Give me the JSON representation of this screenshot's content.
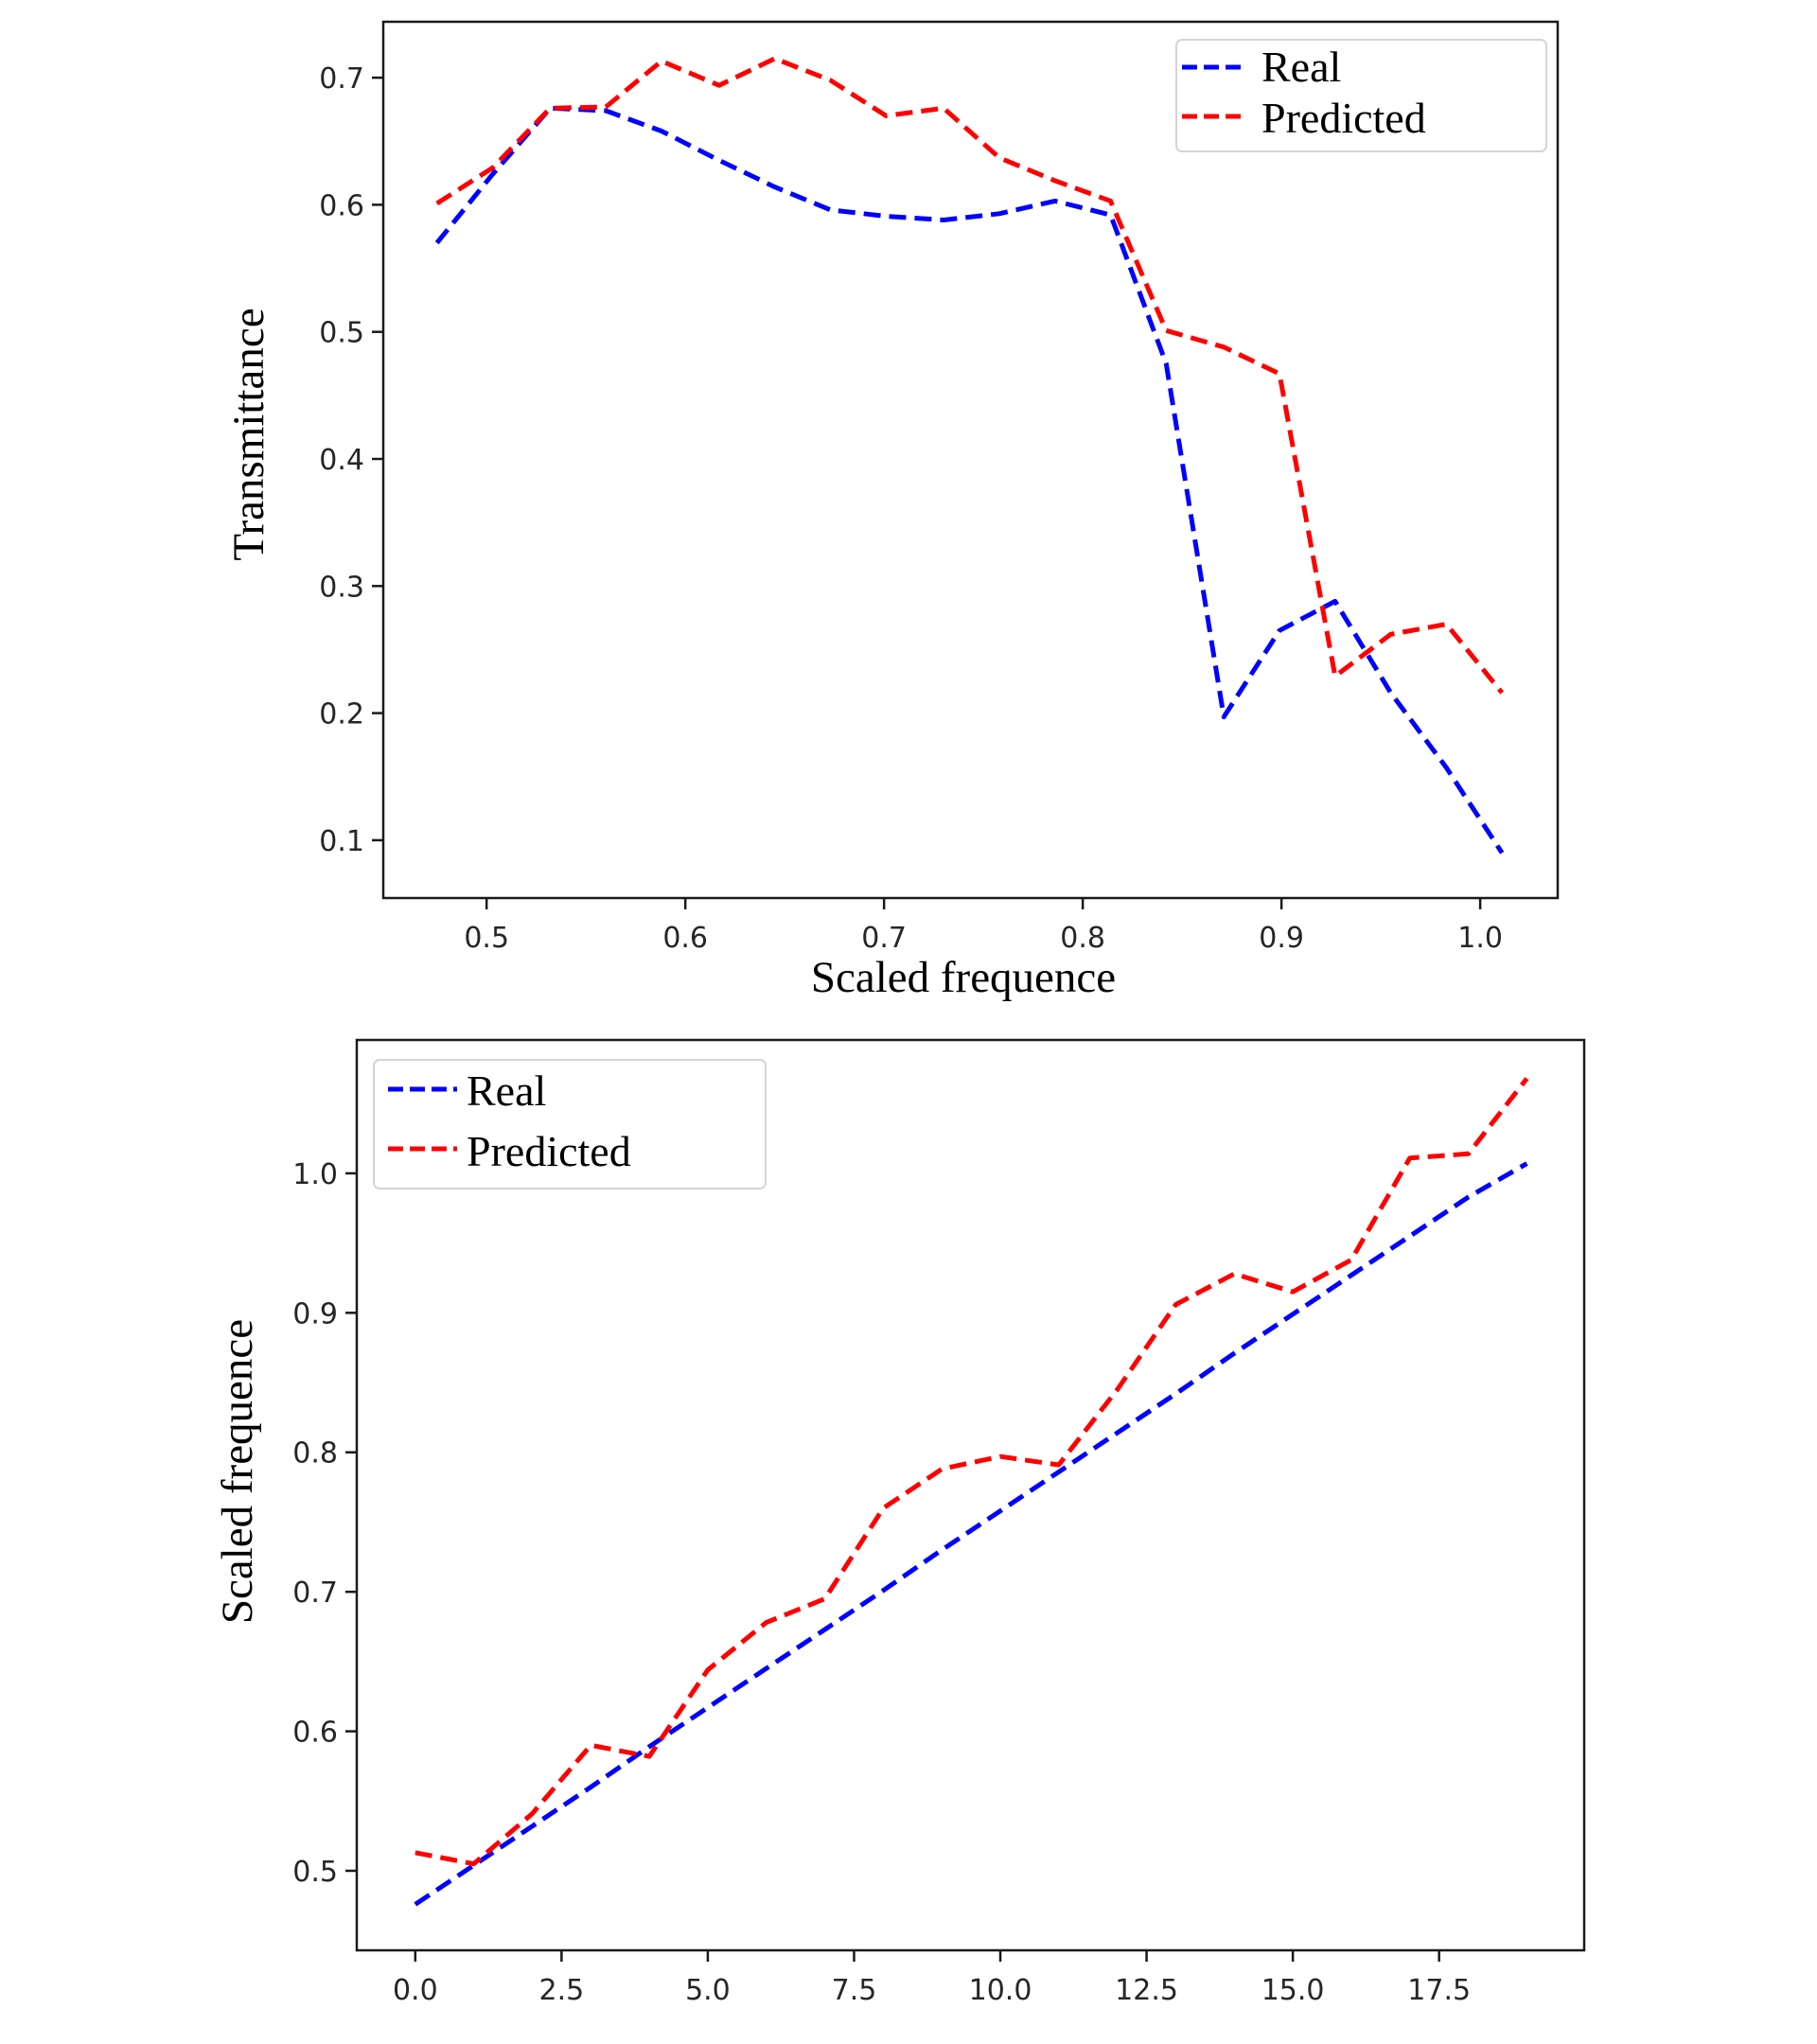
{
  "chart_data": [
    {
      "type": "line",
      "title": "",
      "xlabel": "Scaled frequence",
      "ylabel": "Transmittance",
      "xlim": [
        0.448,
        1.039
      ],
      "ylim": [
        0.0545,
        0.744
      ],
      "grid": false,
      "legend_position": "top-right",
      "xticks": [
        0.5,
        0.6,
        0.7,
        0.8,
        0.9,
        1.0
      ],
      "xtick_labels": [
        "0.5",
        "0.6",
        "0.7",
        "0.8",
        "0.9",
        "1.0"
      ],
      "yticks": [
        0.1,
        0.2,
        0.3,
        0.4,
        0.5,
        0.6,
        0.7
      ],
      "ytick_labels": [
        "0.1",
        "0.2",
        "0.3",
        "0.4",
        "0.5",
        "0.6",
        "0.7"
      ],
      "x": [
        0.475,
        0.503,
        0.532,
        0.56,
        0.588,
        0.617,
        0.645,
        0.673,
        0.701,
        0.73,
        0.758,
        0.786,
        0.814,
        0.842,
        0.871,
        0.899,
        0.927,
        0.955,
        0.983,
        1.011
      ],
      "series": [
        {
          "name": "Real",
          "color": "#0000ff",
          "style": "dashed",
          "values": [
            0.57,
            0.624,
            0.676,
            0.674,
            0.658,
            0.635,
            0.614,
            0.596,
            0.591,
            0.588,
            0.593,
            0.603,
            0.592,
            0.475,
            0.197,
            0.265,
            0.288,
            0.216,
            0.157,
            0.09
          ]
        },
        {
          "name": "Predicted",
          "color": "#ff0000",
          "style": "dashed",
          "values": [
            0.601,
            0.629,
            0.676,
            0.677,
            0.713,
            0.694,
            0.715,
            0.698,
            0.67,
            0.676,
            0.637,
            0.619,
            0.603,
            0.501,
            0.488,
            0.467,
            0.229,
            0.262,
            0.27,
            0.216
          ]
        }
      ]
    },
    {
      "type": "line",
      "title": "",
      "xlabel": "",
      "ylabel": "Scaled frequence",
      "xlim": [
        -1.0,
        19.98
      ],
      "ylim": [
        0.443,
        1.0956
      ],
      "grid": false,
      "legend_position": "top-left",
      "xticks": [
        0.0,
        2.5,
        5.0,
        7.5,
        10.0,
        12.5,
        15.0,
        17.5
      ],
      "xtick_labels": [
        "0.0",
        "2.5",
        "5.0",
        "7.5",
        "10.0",
        "12.5",
        "15.0",
        "17.5"
      ],
      "yticks": [
        0.5,
        0.6,
        0.7,
        0.8,
        0.9,
        1.0
      ],
      "ytick_labels": [
        "0.5",
        "0.6",
        "0.7",
        "0.8",
        "0.9",
        "1.0"
      ],
      "x": [
        0,
        1,
        2,
        3,
        4,
        5,
        6,
        7,
        8,
        9,
        10,
        11,
        12,
        13,
        14,
        15,
        16,
        17,
        18,
        19
      ],
      "series": [
        {
          "name": "Real",
          "color": "#0000ff",
          "style": "dashed",
          "values": [
            0.476,
            0.504,
            0.532,
            0.56,
            0.589,
            0.617,
            0.645,
            0.673,
            0.701,
            0.73,
            0.758,
            0.786,
            0.814,
            0.842,
            0.871,
            0.899,
            0.927,
            0.955,
            0.983,
            1.007
          ]
        },
        {
          "name": "Predicted",
          "color": "#ff0000",
          "style": "dashed",
          "values": [
            0.513,
            0.505,
            0.541,
            0.59,
            0.582,
            0.644,
            0.678,
            0.695,
            0.76,
            0.788,
            0.797,
            0.791,
            0.845,
            0.906,
            0.928,
            0.915,
            0.938,
            1.011,
            1.014,
            1.068
          ]
        }
      ]
    }
  ]
}
